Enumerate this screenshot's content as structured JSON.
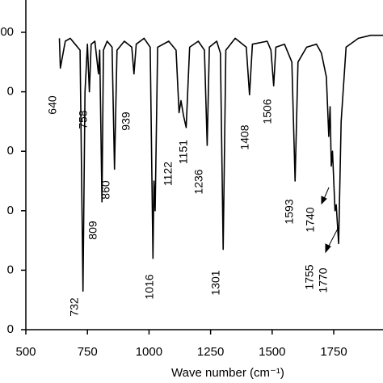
{
  "chart_data": {
    "type": "line",
    "x_label": "Wave number (cm⁻¹)",
    "color": "#000000",
    "x": [
      636,
      640,
      660,
      680,
      700,
      720,
      732,
      740,
      750,
      758,
      765,
      780,
      795,
      800,
      809,
      815,
      830,
      850,
      860,
      870,
      900,
      930,
      939,
      948,
      980,
      1005,
      1016,
      1020,
      1025,
      1035,
      1080,
      1110,
      1122,
      1130,
      1140,
      1151,
      1165,
      1200,
      1225,
      1236,
      1245,
      1275,
      1290,
      1301,
      1312,
      1350,
      1395,
      1408,
      1420,
      1480,
      1495,
      1506,
      1515,
      1550,
      1580,
      1593,
      1605,
      1640,
      1680,
      1700,
      1720,
      1730,
      1735,
      1740,
      1745,
      1755,
      1760,
      1770,
      1780,
      1800,
      1850,
      1900,
      1950
    ],
    "values": [
      98,
      88,
      97,
      98,
      96,
      94,
      13,
      80,
      96,
      80,
      96,
      97,
      86,
      94,
      43,
      94,
      97,
      95,
      54,
      94,
      97,
      95,
      86,
      96,
      98,
      95,
      24,
      50,
      40,
      95,
      97,
      94,
      73,
      77,
      72,
      68,
      95,
      97,
      94,
      62,
      95,
      97,
      93,
      27,
      94,
      98,
      95,
      79,
      96,
      97,
      94,
      82,
      95,
      96,
      90,
      50,
      90,
      95,
      96,
      93,
      85,
      65,
      75,
      55,
      60,
      40,
      42,
      29,
      70,
      95,
      98,
      99,
      99
    ],
    "annotations": [
      "640",
      "758",
      "939",
      "809",
      "860",
      "732",
      "1016",
      "1122",
      "1151",
      "1236",
      "1301",
      "1408",
      "1506",
      "1593",
      "1740",
      "1755",
      "1770"
    ],
    "xlim": [
      500,
      1950
    ],
    "ylim": [
      0,
      110
    ],
    "xticks": [
      500,
      750,
      1000,
      1250,
      1500,
      1750
    ],
    "yticks": [
      {
        "value": 0,
        "label": "0"
      },
      {
        "value": 20,
        "label": "0"
      },
      {
        "value": 40,
        "label": "0"
      },
      {
        "value": 60,
        "label": "0"
      },
      {
        "value": 80,
        "label": "0"
      },
      {
        "value": 100,
        "label": "00"
      }
    ]
  }
}
